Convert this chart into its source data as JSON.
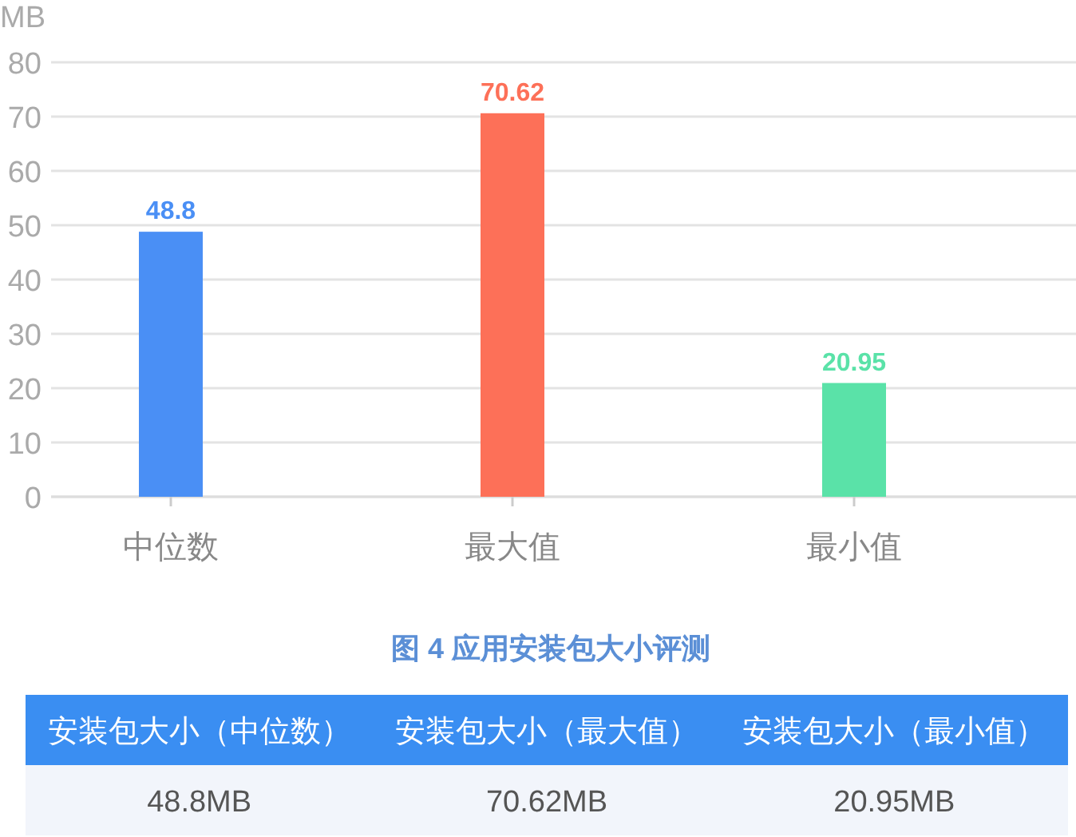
{
  "chart_data": {
    "type": "bar",
    "title": "图 4 应用安装包大小评测",
    "ylabel": "MB",
    "categories": [
      "中位数",
      "最大值",
      "最小值"
    ],
    "values": [
      48.8,
      70.62,
      20.95
    ],
    "colors": [
      "#4a8ff5",
      "#fd7058",
      "#5ae2a8"
    ],
    "ylim": [
      0,
      80
    ],
    "yticks": [
      0,
      10,
      20,
      30,
      40,
      50,
      60,
      70,
      80
    ],
    "grid": "y",
    "data_labels": true,
    "annotations": [
      "安装包大小（中位数）",
      "安装包大小（最大值）",
      "安装包大小（最小值）",
      "48.8MB",
      "70.62MB",
      "20.95MB"
    ]
  }
}
